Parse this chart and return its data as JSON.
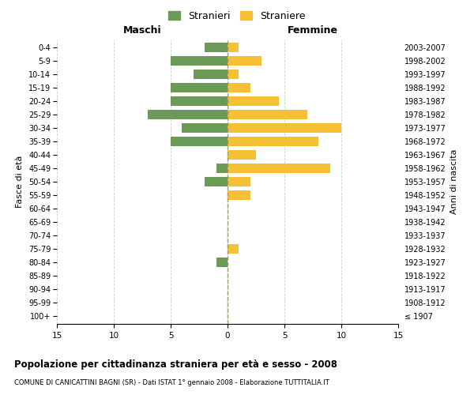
{
  "age_groups": [
    "100+",
    "95-99",
    "90-94",
    "85-89",
    "80-84",
    "75-79",
    "70-74",
    "65-69",
    "60-64",
    "55-59",
    "50-54",
    "45-49",
    "40-44",
    "35-39",
    "30-34",
    "25-29",
    "20-24",
    "15-19",
    "10-14",
    "5-9",
    "0-4"
  ],
  "birth_years": [
    "≤ 1907",
    "1908-1912",
    "1913-1917",
    "1918-1922",
    "1923-1927",
    "1928-1932",
    "1933-1937",
    "1938-1942",
    "1943-1947",
    "1948-1952",
    "1953-1957",
    "1958-1962",
    "1963-1967",
    "1968-1972",
    "1973-1977",
    "1978-1982",
    "1983-1987",
    "1988-1992",
    "1993-1997",
    "1998-2002",
    "2003-2007"
  ],
  "maschi": [
    0,
    0,
    0,
    0,
    1,
    0,
    0,
    0,
    0,
    0,
    2,
    1,
    0,
    5,
    4,
    7,
    5,
    5,
    3,
    5,
    2
  ],
  "femmine": [
    0,
    0,
    0,
    0,
    0,
    1,
    0,
    0,
    0,
    2,
    2,
    9,
    2.5,
    8,
    10,
    7,
    4.5,
    2,
    1,
    3,
    1
  ],
  "maschi_color": "#6a9a55",
  "femmine_color": "#f5c034",
  "title": "Popolazione per cittadinanza straniera per età e sesso - 2008",
  "subtitle": "COMUNE DI CANICATTINI BAGNI (SR) - Dati ISTAT 1° gennaio 2008 - Elaborazione TUTTITALIA.IT",
  "ylabel_left": "Fasce di età",
  "ylabel_right": "Anni di nascita",
  "xlabel_left": "Maschi",
  "xlabel_right": "Femmine",
  "legend_stranieri": "Stranieri",
  "legend_straniere": "Straniere",
  "xlim": 15,
  "background_color": "#ffffff",
  "grid_color": "#cccccc",
  "dashed_line_color": "#999966"
}
